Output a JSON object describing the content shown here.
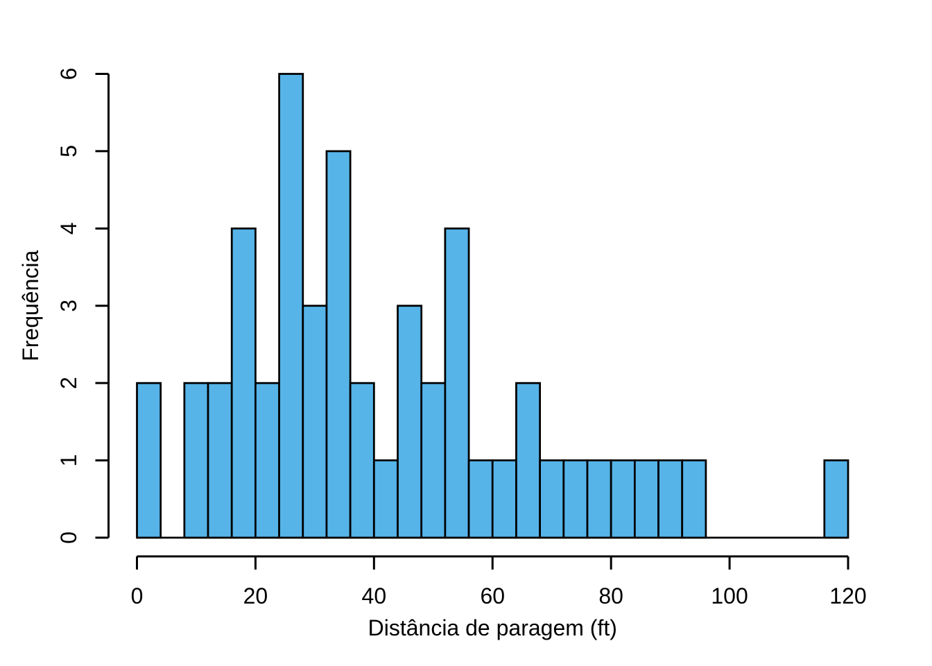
{
  "figure": {
    "background": "#ffffff",
    "bar_fill": "#56B4E9",
    "bar_stroke": "#000000",
    "axis_color": "#000000",
    "text_color": "#000000"
  },
  "chart_data": {
    "type": "bar",
    "subtype": "histogram",
    "title": "",
    "xlabel": "Distância de paragem (ft)",
    "ylabel": "Frequência",
    "xlim": [
      0,
      120
    ],
    "ylim": [
      0,
      6
    ],
    "grid": false,
    "legend_position": "none",
    "bin_width": 4,
    "bin_edges": [
      0,
      4,
      8,
      12,
      16,
      20,
      24,
      28,
      32,
      36,
      40,
      44,
      48,
      52,
      56,
      60,
      64,
      68,
      72,
      76,
      80,
      84,
      88,
      92,
      96,
      100,
      104,
      108,
      112,
      116,
      120
    ],
    "counts": [
      2,
      0,
      2,
      2,
      4,
      2,
      6,
      3,
      5,
      2,
      1,
      3,
      2,
      4,
      1,
      1,
      2,
      1,
      1,
      1,
      1,
      1,
      1,
      1,
      0,
      0,
      0,
      0,
      0,
      1
    ],
    "x_ticks": [
      0,
      20,
      40,
      60,
      80,
      100,
      120
    ],
    "y_ticks": [
      0,
      1,
      2,
      3,
      4,
      5,
      6
    ]
  }
}
